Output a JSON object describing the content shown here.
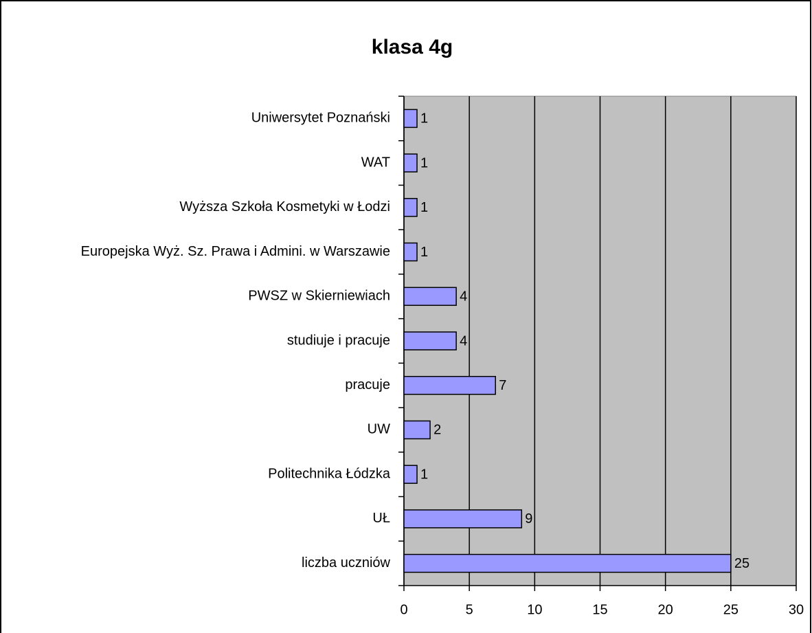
{
  "chart_data": {
    "type": "bar",
    "orientation": "horizontal",
    "title": "klasa 4g",
    "categories": [
      "Uniwersytet Poznański",
      "WAT",
      "Wyższa Szkoła Kosmetyki w Łodzi",
      "Europejska Wyż. Sz. Prawa i Admini. w Warszawie",
      "PWSZ w Skierniewiach",
      "studiuje i pracuje",
      "pracuje",
      "UW",
      "Politechnika Łódzka",
      "UŁ",
      "liczba uczniów"
    ],
    "values": [
      1,
      1,
      1,
      1,
      4,
      4,
      7,
      2,
      1,
      9,
      25
    ],
    "color": "#9999ff",
    "xlim": [
      0,
      30
    ],
    "xticks": [
      0,
      5,
      10,
      15,
      20,
      25,
      30
    ],
    "grid": true
  }
}
